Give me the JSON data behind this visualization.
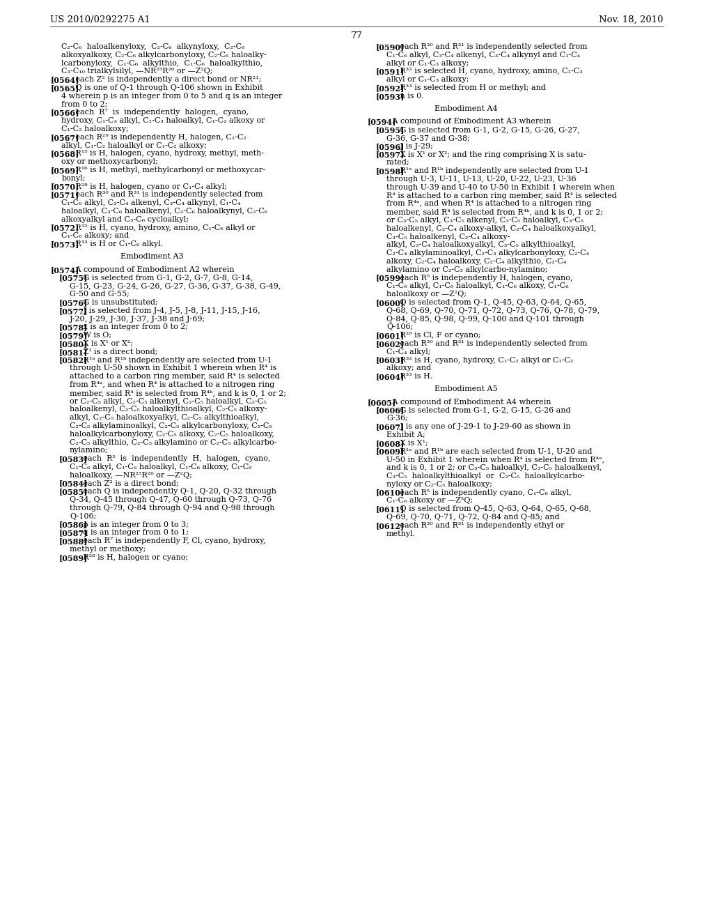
{
  "background_color": "#ffffff",
  "page_number": "77",
  "header_left": "US 2010/0292275 A1",
  "header_right": "Nov. 18, 2010",
  "left_lines": [
    "    C₂-C₆  haloalkenyloxy,  C₂-C₆  alkynyloxy,  C₂-C₆",
    "    alkoxyalkoxy, C₂-C₆ alkylcarbonyloxy, C₂-C₆ haloalky-",
    "    lcarbonyloxy,  C₁-C₆  alkylthio,  C₁-C₆  haloalkylthio,",
    "    C₃-C₁₀ trialkylsilyl, —NR²⁵R²⁶ or —Z²Q;",
    "[0564]   each Z² is independently a direct bond or NR²¹;",
    "[0565]   Q is one of Q-1 through Q-106 shown in Exhibit",
    "    4 wherein p is an integer from 0 to 5 and q is an integer",
    "    from 0 to 2;",
    "[0566]   each  R⁷  is  independently  halogen,  cyano,",
    "    hydroxy, C₁-C₃ alkyl, C₁-C₃ haloalkyl, C₁-C₂ alkoxy or",
    "    C₁-C₂ haloalkoxy;",
    "[0567]   each R²⁹ is independently H, halogen, C₁-C₂",
    "    alkyl, C₁-C₂ haloalkyl or C₁-C₂ alkoxy;",
    "[0568]   R¹⁵ is H, halogen, cyano, hydroxy, methyl, meth-",
    "    oxy or methoxycarbonyl;",
    "[0569]   R¹⁶ is H, methyl, methylcarbonyl or methoxycar-",
    "    bonyl;",
    "[0570]   R²⁸ is H, halogen, cyano or C₁-C₄ alkyl;",
    "[0571]   each R³⁰ and R³¹ is independently selected from",
    "    C₁-C₆ alkyl, C₃-C₄ alkenyl, C₃-C₄ alkynyl, C₁-C₄",
    "    haloalkyl, C₃-C₆ haloalkenyl, C₃-C₆ haloalkynyl, C₂-C₆",
    "    alkoxyalkyl and C₃-C₆ cycloalkyl;",
    "[0572]   R³² is H, cyano, hydroxy, amino, C₁-C₆ alkyl or",
    "    C₁-C₆ alkoxy; and",
    "[0573]   R³³ is H or C₁-C₆ alkyl.",
    "",
    "                          Embodiment A3",
    "",
    "[0574]   A compound of Embodiment A2 wherein",
    "   [0575]   G is selected from G-1, G-2, G-7, G-8, G-14,",
    "       G-15, G-23, G-24, G-26, G-27, G-36, G-37, G-38, G-49,",
    "       G-50 and G-55;",
    "   [0576]   G is unsubstituted;",
    "   [0577]   J is selected from J-4, J-5, J-8, J-11, J-15, J-16,",
    "       J-20, J-29, J-30, J-37, J-38 and J-69;",
    "   [0578]   x is an integer from 0 to 2;",
    "   [0579]   W is O;",
    "   [0580]   X is X¹ or X²;",
    "   [0581]   Z¹ is a direct bond;",
    "   [0582]   R¹ᵃ and R¹ᵇ independently are selected from U-1",
    "       through U-50 shown in Exhibit 1 wherein when R⁴ is",
    "       attached to a carbon ring member, said R⁴ is selected",
    "       from R⁴ᵃ, and when R⁴ is attached to a nitrogen ring",
    "       member, said R⁴ is selected from R⁴ᵇ, and k is 0, 1 or 2;",
    "       or C₂-C₅ alkyl, C₂-C₅ alkenyl, C₂-C₅ haloalkyl, C₂-C₅",
    "       haloalkenyl, C₂-C₅ haloalkylthioalkyl, C₂-C₅ alkoxy-",
    "       alkyl, C₂-C₅ haloalkoxyalkyl, C₂-C₅ alkylthioalkyl,",
    "       C₂-C₅ alkylaminoalkyl, C₂-C₅ alkylcarbonyloxy, C₂-C₅",
    "       haloalkylcarbonyloxy, C₂-C₅ alkoxy, C₂-C₅ haloalkoxy,",
    "       C₂-C₅ alkylthio, C₂-C₅ alkylamino or C₂-C₅ alkylcarbo-",
    "       nylamino;",
    "   [0583]   each  R⁵  is  independently  H,  halogen,  cyano,",
    "       C₁-C₆ alkyl, C₁-C₆ haloalkyl, C₁-C₆ alkoxy, C₁-C₆",
    "       haloalkoxy, —NR²⁵R²⁶ or —Z²Q;",
    "   [0584]   each Z² is a direct bond;",
    "   [0585]   each Q is independently Q-1, Q-20, Q-32 through",
    "       Q-34, Q-45 through Q-47, Q-60 through Q-73, Q-76",
    "       through Q-79, Q-84 through Q-94 and Q-98 through",
    "       Q-106;",
    "   [0586]   p is an integer from 0 to 3;",
    "   [0587]   q is an integer from 0 to 1;",
    "   [0588]   each R⁷ is independently F, Cl, cyano, hydroxy,",
    "       methyl or methoxy;",
    "   [0589]   R²⁸ is H, halogen or cyano;"
  ],
  "right_lines": [
    "   [0590]   each R³⁰ and R³¹ is independently selected from",
    "       C₁-C₆ alkyl, C₃-C₄ alkenyl, C₃-C₄ alkynyl and C₁-C₄",
    "       alkyl or C₁-C₃ alkoxy;",
    "   [0591]   R³² is selected H, cyano, hydroxy, amino, C₁-C₃",
    "       alkyl or C₁-C₃ alkoxy;",
    "   [0592]   R³³ is selected from H or methyl; and",
    "   [0593]   n is 0.",
    "",
    "                         Embodiment A4",
    "",
    "[0594]   A compound of Embodiment A3 wherein",
    "   [0595]   G is selected from G-1, G-2, G-15, G-26, G-27,",
    "       G-36, G-37 and G-38;",
    "   [0596]   J is J-29;",
    "   [0597]   X is X¹ or X²; and the ring comprising X is satu-",
    "       rated;",
    "   [0598]   R¹ᵃ and R¹ᵇ independently are selected from U-1",
    "       through U-3, U-11, U-13, U-20, U-22, U-23, U-36",
    "       through U-39 and U-40 to U-50 in Exhibit 1 wherein when",
    "       R⁴ is attached to a carbon ring member, said R⁴ is selected",
    "       from R⁴ᵃ, and when R⁴ is attached to a nitrogen ring",
    "       member, said R⁴ is selected from R⁴ᵇ, and k is 0, 1 or 2;",
    "       or C₃-C₅ alkyl, C₃-C₅ alkenyl, C₃-C₅ haloalkyl, C₃-C₅",
    "       haloalkenyl, C₂-C₄ alkoxy-alkyl, C₂-C₄ haloalkoxyalkyl,",
    "       C₃-C₅ haloalkenyl, C₂-C₄ alkoxy-",
    "       alkyl, C₂-C₄ haloalkoxyalkyl, C₃-C₅ alkylthioalkyl,",
    "       C₂-C₄ alkylaminoalkyl, C₂-C₃ alkylcarbonyloxy, C₂-C₄",
    "       alkoxy, C₂-C₄ haloalkoxy, C₂-C₄ alkylthio, C₂-C₄",
    "       alkylamino or C₂-C₃ alkylcarbo-nylamino;",
    "   [0599]   each R⁵ is independently H, halogen, cyano,",
    "       C₁-C₆ alkyl, C₁-C₆ haloalkyl, C₁-C₆ alkoxy, C₁-C₆",
    "       haloalkoxy or —Z²Q;",
    "   [0600]   Q is selected from Q-1, Q-45, Q-63, Q-64, Q-65,",
    "       Q-68, Q-69, Q-70, Q-71, Q-72, Q-73, Q-76, Q-78, Q-79,",
    "       Q-84, Q-85, Q-98, Q-99, Q-100 and Q-101 through",
    "       Q-106;",
    "   [0601]   R²⁸ is Cl, F or cyano;",
    "   [0602]   each R³⁰ and R³¹ is independently selected from",
    "       C₁-C₄ alkyl;",
    "   [0603]   R³² is H, cyano, hydroxy, C₁-C₂ alkyl or C₁-C₂",
    "       alkoxy; and",
    "   [0604]   R³³ is H.",
    "",
    "                         Embodiment A5",
    "",
    "[0605]   A compound of Embodiment A4 wherein",
    "   [0606]   G is selected from G-1, G-2, G-15, G-26 and",
    "       G-36;",
    "   [0607]   J is any one of J-29-1 to J-29-60 as shown in",
    "       Exhibit A;",
    "   [0608]   X is X¹;",
    "   [0609]   R¹ᵃ and R¹ᵇ are each selected from U-1, U-20 and",
    "       U-50 in Exhibit 1 wherein when R⁴ is selected from R⁴ᵃ,",
    "       and k is 0, 1 or 2; or C₃-C₅ haloalkyl, C₃-C₅ haloalkenyl,",
    "       C₃-C₅  haloalkylthioalkyl  or  C₂-C₅  haloalkylcarbo-",
    "       nyloxy or C₂-C₅ haloalkoxy;",
    "   [0610]   each R⁵ is independently cyano, C₁-C₆ alkyl,",
    "       C₁-C₆ alkoxy or —Z²Q;",
    "   [0611]   Q is selected from Q-45, Q-63, Q-64, Q-65, Q-68,",
    "       Q-69, Q-70, Q-71, Q-72, Q-84 and Q-85; and",
    "   [0612]   each R³⁰ and R³¹ is independently ethyl or",
    "       methyl."
  ],
  "bold_tags": [
    "[0564]",
    "[0565]",
    "[0566]",
    "[0567]",
    "[0568]",
    "[0569]",
    "[0570]",
    "[0571]",
    "[0572]",
    "[0573]",
    "[0574]",
    "[0575]",
    "[0576]",
    "[0577]",
    "[0578]",
    "[0579]",
    "[0580]",
    "[0581]",
    "[0582]",
    "[0583]",
    "[0584]",
    "[0585]",
    "[0586]",
    "[0587]",
    "[0588]",
    "[0589]",
    "[0590]",
    "[0591]",
    "[0592]",
    "[0593]",
    "[0594]",
    "[0595]",
    "[0596]",
    "[0597]",
    "[0598]",
    "[0599]",
    "[0600]",
    "[0601]",
    "[0602]",
    "[0603]",
    "[0604]",
    "[0605]",
    "[0606]",
    "[0607]",
    "[0608]",
    "[0609]",
    "[0610]",
    "[0611]",
    "[0612]"
  ]
}
